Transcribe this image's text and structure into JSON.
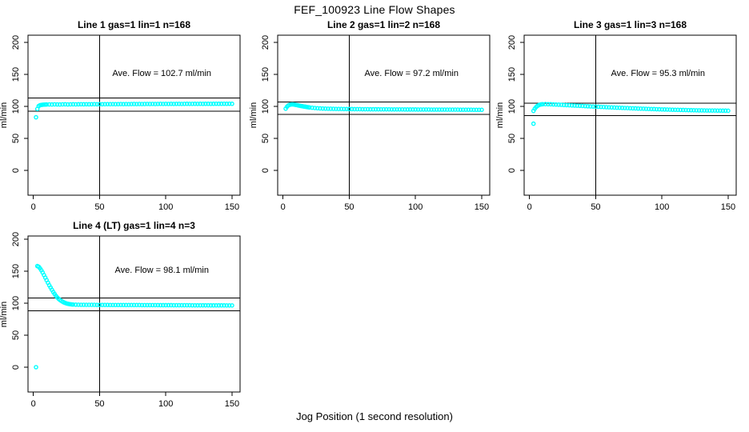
{
  "figure": {
    "title": "FEF_100923  Line Flow Shapes",
    "xlabel": "Jog Position (1 second resolution)",
    "ylabel": "ml/min",
    "marker_color": "#00FFFF",
    "axis_color": "#000000",
    "background": "#FFFFFF"
  },
  "chart_data": [
    {
      "type": "scatter",
      "title": "Line 1 gas=1 lin=1 n=168",
      "annotation": "Ave. Flow =  102.7  ml/min",
      "ave_flow": 102.7,
      "x_ticks": [
        0,
        50,
        100,
        150
      ],
      "y_ticks": [
        0,
        50,
        100,
        150,
        200
      ],
      "xlim": [
        0,
        155
      ],
      "ylim": [
        0,
        200
      ],
      "vline_x": 50,
      "hlines": [
        113.0,
        92.4
      ],
      "points": [
        [
          2,
          83
        ],
        [
          3,
          96
        ],
        [
          4,
          100.5
        ],
        [
          5,
          101.8
        ],
        [
          6,
          102.3
        ],
        [
          7,
          102.6
        ],
        [
          8,
          102.8
        ],
        [
          9,
          102.9
        ],
        [
          10,
          103
        ],
        [
          12,
          103.1
        ],
        [
          14,
          103
        ],
        [
          16,
          103.2
        ],
        [
          18,
          103.1
        ],
        [
          20,
          103
        ],
        [
          22,
          103.2
        ],
        [
          24,
          103.3
        ],
        [
          26,
          103.1
        ],
        [
          28,
          103.2
        ],
        [
          30,
          103.3
        ],
        [
          32,
          103.2
        ],
        [
          34,
          103.3
        ],
        [
          36,
          103.4
        ],
        [
          38,
          103.3
        ],
        [
          40,
          103.4
        ],
        [
          42,
          103.3
        ],
        [
          44,
          103.4
        ],
        [
          46,
          103.5
        ],
        [
          48,
          103.4
        ],
        [
          50,
          103.5
        ],
        [
          52,
          103.4
        ],
        [
          54,
          103.5
        ],
        [
          56,
          103.6
        ],
        [
          58,
          103.5
        ],
        [
          60,
          103.6
        ],
        [
          62,
          103.5
        ],
        [
          64,
          103.6
        ],
        [
          66,
          103.7
        ],
        [
          68,
          103.6
        ],
        [
          70,
          103.7
        ],
        [
          72,
          103.6
        ],
        [
          74,
          103.7
        ],
        [
          76,
          103.8
        ],
        [
          78,
          103.7
        ],
        [
          80,
          103.8
        ],
        [
          82,
          103.7
        ],
        [
          84,
          103.8
        ],
        [
          86,
          103.9
        ],
        [
          88,
          103.8
        ],
        [
          90,
          103.9
        ],
        [
          92,
          103.8
        ],
        [
          94,
          103.9
        ],
        [
          96,
          104
        ],
        [
          98,
          103.9
        ],
        [
          100,
          104
        ],
        [
          102,
          103.9
        ],
        [
          104,
          104
        ],
        [
          106,
          103.9
        ],
        [
          108,
          104
        ],
        [
          110,
          104
        ],
        [
          112,
          103.9
        ],
        [
          114,
          104
        ],
        [
          116,
          104.1
        ],
        [
          118,
          104
        ],
        [
          120,
          104
        ],
        [
          122,
          104.1
        ],
        [
          124,
          104
        ],
        [
          126,
          104.1
        ],
        [
          128,
          104
        ],
        [
          130,
          104.1
        ],
        [
          132,
          104.1
        ],
        [
          134,
          104
        ],
        [
          136,
          104.1
        ],
        [
          138,
          104.2
        ],
        [
          140,
          104.1
        ],
        [
          142,
          104.1
        ],
        [
          144,
          104.2
        ],
        [
          146,
          104.1
        ],
        [
          148,
          104.2
        ],
        [
          150,
          104.1
        ]
      ]
    },
    {
      "type": "scatter",
      "title": "Line 2 gas=1 lin=2 n=168",
      "annotation": "Ave. Flow =  97.2  ml/min",
      "ave_flow": 97.2,
      "x_ticks": [
        0,
        50,
        100,
        150
      ],
      "y_ticks": [
        0,
        50,
        100,
        150,
        200
      ],
      "xlim": [
        0,
        155
      ],
      "ylim": [
        0,
        200
      ],
      "vline_x": 50,
      "hlines": [
        106.9,
        87.5
      ],
      "points": [
        [
          2,
          96.5
        ],
        [
          3,
          99.5
        ],
        [
          4,
          101.5
        ],
        [
          5,
          102.5
        ],
        [
          6,
          103
        ],
        [
          7,
          103.2
        ],
        [
          8,
          103
        ],
        [
          9,
          102.6
        ],
        [
          10,
          102.2
        ],
        [
          11,
          101.8
        ],
        [
          12,
          101.3
        ],
        [
          13,
          100.9
        ],
        [
          14,
          100.5
        ],
        [
          15,
          100.1
        ],
        [
          16,
          99.7
        ],
        [
          17,
          99.4
        ],
        [
          18,
          99
        ],
        [
          19,
          98.7
        ],
        [
          20,
          98.4
        ],
        [
          22,
          97.9
        ],
        [
          24,
          97.5
        ],
        [
          26,
          97.2
        ],
        [
          28,
          96.9
        ],
        [
          30,
          96.7
        ],
        [
          32,
          96.5
        ],
        [
          34,
          96.4
        ],
        [
          36,
          96.3
        ],
        [
          38,
          96.2
        ],
        [
          40,
          96.1
        ],
        [
          42,
          96
        ],
        [
          44,
          96
        ],
        [
          46,
          95.9
        ],
        [
          48,
          95.9
        ],
        [
          50,
          95.8
        ],
        [
          52,
          95.8
        ],
        [
          54,
          95.7
        ],
        [
          56,
          95.7
        ],
        [
          58,
          95.7
        ],
        [
          60,
          95.6
        ],
        [
          62,
          95.6
        ],
        [
          64,
          95.6
        ],
        [
          66,
          95.5
        ],
        [
          68,
          95.5
        ],
        [
          70,
          95.5
        ],
        [
          72,
          95.5
        ],
        [
          74,
          95.4
        ],
        [
          76,
          95.4
        ],
        [
          78,
          95.4
        ],
        [
          80,
          95.4
        ],
        [
          82,
          95.3
        ],
        [
          84,
          95.3
        ],
        [
          86,
          95.3
        ],
        [
          88,
          95.3
        ],
        [
          90,
          95.3
        ],
        [
          92,
          95.2
        ],
        [
          94,
          95.2
        ],
        [
          96,
          95.2
        ],
        [
          98,
          95.2
        ],
        [
          100,
          95.2
        ],
        [
          102,
          95.1
        ],
        [
          104,
          95.1
        ],
        [
          106,
          95.1
        ],
        [
          108,
          95.1
        ],
        [
          110,
          95.1
        ],
        [
          112,
          95
        ],
        [
          114,
          95
        ],
        [
          116,
          95
        ],
        [
          118,
          95
        ],
        [
          120,
          95
        ],
        [
          122,
          95
        ],
        [
          124,
          94.9
        ],
        [
          126,
          94.9
        ],
        [
          128,
          94.9
        ],
        [
          130,
          94.9
        ],
        [
          132,
          94.9
        ],
        [
          134,
          94.8
        ],
        [
          136,
          94.8
        ],
        [
          138,
          94.8
        ],
        [
          140,
          94.8
        ],
        [
          142,
          94.8
        ],
        [
          144,
          94.7
        ],
        [
          146,
          94.7
        ],
        [
          148,
          94.7
        ],
        [
          150,
          94.7
        ]
      ]
    },
    {
      "type": "scatter",
      "title": "Line 3 gas=1 lin=3 n=168",
      "annotation": "Ave. Flow =  95.3  ml/min",
      "ave_flow": 95.3,
      "x_ticks": [
        0,
        50,
        100,
        150
      ],
      "y_ticks": [
        0,
        50,
        100,
        150,
        200
      ],
      "xlim": [
        0,
        155
      ],
      "ylim": [
        0,
        200
      ],
      "vline_x": 50,
      "hlines": [
        104.8,
        85.8
      ],
      "points": [
        [
          3,
          73
        ],
        [
          3,
          93
        ],
        [
          4,
          96.5
        ],
        [
          5,
          99
        ],
        [
          6,
          100.8
        ],
        [
          7,
          102
        ],
        [
          8,
          102.8
        ],
        [
          9,
          103.2
        ],
        [
          10,
          103.4
        ],
        [
          12,
          103.5
        ],
        [
          14,
          103.4
        ],
        [
          16,
          103.3
        ],
        [
          18,
          103.1
        ],
        [
          20,
          102.9
        ],
        [
          22,
          102.7
        ],
        [
          24,
          102.5
        ],
        [
          26,
          102.2
        ],
        [
          28,
          102
        ],
        [
          30,
          101.8
        ],
        [
          32,
          101.5
        ],
        [
          34,
          101.3
        ],
        [
          36,
          101.1
        ],
        [
          38,
          100.9
        ],
        [
          40,
          100.7
        ],
        [
          42,
          100.4
        ],
        [
          44,
          100.2
        ],
        [
          46,
          100
        ],
        [
          48,
          99.8
        ],
        [
          50,
          99.6
        ],
        [
          52,
          99.4
        ],
        [
          54,
          99.2
        ],
        [
          56,
          99
        ],
        [
          58,
          98.8
        ],
        [
          60,
          98.6
        ],
        [
          62,
          98.4
        ],
        [
          64,
          98.2
        ],
        [
          66,
          98
        ],
        [
          68,
          97.9
        ],
        [
          70,
          97.7
        ],
        [
          72,
          97.5
        ],
        [
          74,
          97.4
        ],
        [
          76,
          97.2
        ],
        [
          78,
          97
        ],
        [
          80,
          96.9
        ],
        [
          82,
          96.7
        ],
        [
          84,
          96.5
        ],
        [
          86,
          96.4
        ],
        [
          88,
          96.2
        ],
        [
          90,
          96.1
        ],
        [
          92,
          95.9
        ],
        [
          94,
          95.8
        ],
        [
          96,
          95.6
        ],
        [
          98,
          95.5
        ],
        [
          100,
          95.3
        ],
        [
          102,
          95.2
        ],
        [
          104,
          95.1
        ],
        [
          106,
          94.9
        ],
        [
          108,
          94.8
        ],
        [
          110,
          94.7
        ],
        [
          112,
          94.6
        ],
        [
          114,
          94.5
        ],
        [
          116,
          94.4
        ],
        [
          118,
          94.3
        ],
        [
          120,
          94.2
        ],
        [
          122,
          94.1
        ],
        [
          124,
          94
        ],
        [
          126,
          93.9
        ],
        [
          128,
          93.8
        ],
        [
          130,
          93.8
        ],
        [
          132,
          93.7
        ],
        [
          134,
          93.6
        ],
        [
          136,
          93.6
        ],
        [
          138,
          93.5
        ],
        [
          140,
          93.5
        ],
        [
          142,
          93.4
        ],
        [
          144,
          93.4
        ],
        [
          146,
          93.3
        ],
        [
          148,
          93.3
        ],
        [
          150,
          93.2
        ]
      ]
    },
    {
      "type": "scatter",
      "title": "Line 4 (LT) gas=1 lin=4 n=3",
      "annotation": "Ave. Flow =  98.1  ml/min",
      "ave_flow": 98.1,
      "x_ticks": [
        0,
        50,
        100,
        150
      ],
      "y_ticks": [
        0,
        50,
        100,
        150,
        200
      ],
      "xlim": [
        0,
        155
      ],
      "ylim": [
        0,
        200
      ],
      "vline_x": 50,
      "hlines": [
        107.9,
        88.3
      ],
      "points": [
        [
          2,
          0
        ],
        [
          3,
          158
        ],
        [
          4,
          157
        ],
        [
          5,
          154.5
        ],
        [
          6,
          151.5
        ],
        [
          7,
          148
        ],
        [
          8,
          144
        ],
        [
          9,
          140
        ],
        [
          10,
          136
        ],
        [
          11,
          132
        ],
        [
          12,
          128
        ],
        [
          13,
          124.5
        ],
        [
          14,
          121
        ],
        [
          15,
          117.5
        ],
        [
          16,
          114.5
        ],
        [
          17,
          111.5
        ],
        [
          18,
          109
        ],
        [
          19,
          107
        ],
        [
          20,
          105.2
        ],
        [
          21,
          103.7
        ],
        [
          22,
          102.4
        ],
        [
          23,
          101.3
        ],
        [
          24,
          100.4
        ],
        [
          25,
          99.7
        ],
        [
          26,
          99.1
        ],
        [
          27,
          98.7
        ],
        [
          28,
          98.4
        ],
        [
          29,
          98.1
        ],
        [
          30,
          97.9
        ],
        [
          32,
          97.7
        ],
        [
          34,
          97.6
        ],
        [
          36,
          97.5
        ],
        [
          38,
          97.5
        ],
        [
          40,
          97.4
        ],
        [
          42,
          97.4
        ],
        [
          44,
          97.4
        ],
        [
          46,
          97.4
        ],
        [
          48,
          97.3
        ],
        [
          50,
          97.3
        ],
        [
          52,
          97.3
        ],
        [
          54,
          97.3
        ],
        [
          56,
          97.3
        ],
        [
          58,
          97.2
        ],
        [
          60,
          97.2
        ],
        [
          62,
          97.2
        ],
        [
          64,
          97.2
        ],
        [
          66,
          97.2
        ],
        [
          68,
          97.2
        ],
        [
          70,
          97.1
        ],
        [
          72,
          97.1
        ],
        [
          74,
          97.1
        ],
        [
          76,
          97.1
        ],
        [
          78,
          97.1
        ],
        [
          80,
          97.1
        ],
        [
          82,
          97
        ],
        [
          84,
          97
        ],
        [
          86,
          97
        ],
        [
          88,
          97
        ],
        [
          90,
          97
        ],
        [
          92,
          97
        ],
        [
          94,
          97
        ],
        [
          96,
          96.9
        ],
        [
          98,
          96.9
        ],
        [
          100,
          96.9
        ],
        [
          102,
          96.9
        ],
        [
          104,
          96.9
        ],
        [
          106,
          96.8
        ],
        [
          108,
          96.8
        ],
        [
          110,
          96.8
        ],
        [
          112,
          96.8
        ],
        [
          114,
          96.8
        ],
        [
          116,
          96.8
        ],
        [
          118,
          96.8
        ],
        [
          120,
          96.7
        ],
        [
          122,
          96.7
        ],
        [
          124,
          96.7
        ],
        [
          126,
          96.7
        ],
        [
          128,
          96.7
        ],
        [
          130,
          96.7
        ],
        [
          132,
          96.7
        ],
        [
          134,
          96.6
        ],
        [
          136,
          96.6
        ],
        [
          138,
          96.6
        ],
        [
          140,
          96.6
        ],
        [
          142,
          96.6
        ],
        [
          144,
          96.6
        ],
        [
          146,
          96.5
        ],
        [
          148,
          96.5
        ],
        [
          150,
          96.5
        ]
      ]
    }
  ]
}
